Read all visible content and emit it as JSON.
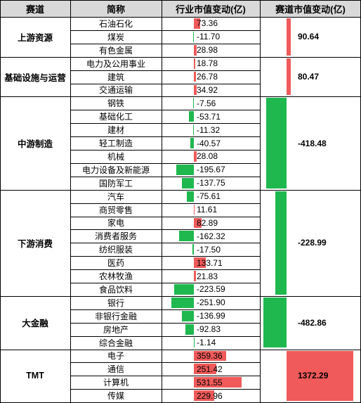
{
  "header": {
    "track": "赛道",
    "industry": "简称",
    "change": "行业市值变动(亿)",
    "track_change": "赛道市值变动(亿)"
  },
  "colors": {
    "positive": "#f05a5a",
    "negative": "#1fb84f",
    "header_bg": "#d9d9d9"
  },
  "chart_data": {
    "type": "table",
    "groups": [
      {
        "name": "上游资源",
        "total": 90.64,
        "total_label": "90.64",
        "rows": [
          {
            "name": "石油石化",
            "value": 73.36,
            "label": "73.36"
          },
          {
            "name": "煤炭",
            "value": -11.7,
            "label": "-11.70"
          },
          {
            "name": "有色金属",
            "value": 28.98,
            "label": "28.98"
          }
        ]
      },
      {
        "name": "基础设施与运营",
        "total": 80.47,
        "total_label": "80.47",
        "rows": [
          {
            "name": "电力及公用事业",
            "value": 18.78,
            "label": "18.78"
          },
          {
            "name": "建筑",
            "value": 26.78,
            "label": "26.78"
          },
          {
            "name": "交通运输",
            "value": 34.92,
            "label": "34.92"
          }
        ]
      },
      {
        "name": "中游制造",
        "total": -418.48,
        "total_label": "-418.48",
        "rows": [
          {
            "name": "钢铁",
            "value": -7.56,
            "label": "-7.56"
          },
          {
            "name": "基础化工",
            "value": -53.71,
            "label": "-53.71"
          },
          {
            "name": "建材",
            "value": -11.32,
            "label": "-11.32"
          },
          {
            "name": "轻工制造",
            "value": -40.57,
            "label": "-40.57"
          },
          {
            "name": "机械",
            "value": 28.08,
            "label": "28.08"
          },
          {
            "name": "电力设备及新能源",
            "value": -195.67,
            "label": "-195.67"
          },
          {
            "name": "国防军工",
            "value": -137.75,
            "label": "-137.75"
          }
        ]
      },
      {
        "name": "下游消费",
        "total": -228.99,
        "total_label": "-228.99",
        "rows": [
          {
            "name": "汽车",
            "value": -75.61,
            "label": "-75.61"
          },
          {
            "name": "商贸零售",
            "value": 11.61,
            "label": "11.61"
          },
          {
            "name": "家电",
            "value": 82.89,
            "label": "82.89"
          },
          {
            "name": "消费者服务",
            "value": -162.32,
            "label": "-162.32"
          },
          {
            "name": "纺织服装",
            "value": -17.5,
            "label": "-17.50"
          },
          {
            "name": "医药",
            "value": 133.71,
            "label": "133.71"
          },
          {
            "name": "农林牧渔",
            "value": 21.83,
            "label": "21.83"
          },
          {
            "name": "食品饮料",
            "value": -223.59,
            "label": "-223.59"
          }
        ]
      },
      {
        "name": "大金融",
        "total": -482.86,
        "total_label": "-482.86",
        "rows": [
          {
            "name": "银行",
            "value": -251.9,
            "label": "-251.90"
          },
          {
            "name": "非银行金融",
            "value": -136.99,
            "label": "-136.99"
          },
          {
            "name": "房地产",
            "value": -92.83,
            "label": "-92.83"
          },
          {
            "name": "综合金融",
            "value": -1.14,
            "label": "-1.14"
          }
        ]
      },
      {
        "name": "TMT",
        "total": 1372.29,
        "total_label": "1372.29",
        "rows": [
          {
            "name": "电子",
            "value": 359.36,
            "label": "359.36"
          },
          {
            "name": "通信",
            "value": 251.42,
            "label": "251.42"
          },
          {
            "name": "计算机",
            "value": 531.55,
            "label": "531.55"
          },
          {
            "name": "传媒",
            "value": 229.96,
            "label": "229.96"
          }
        ]
      }
    ]
  }
}
